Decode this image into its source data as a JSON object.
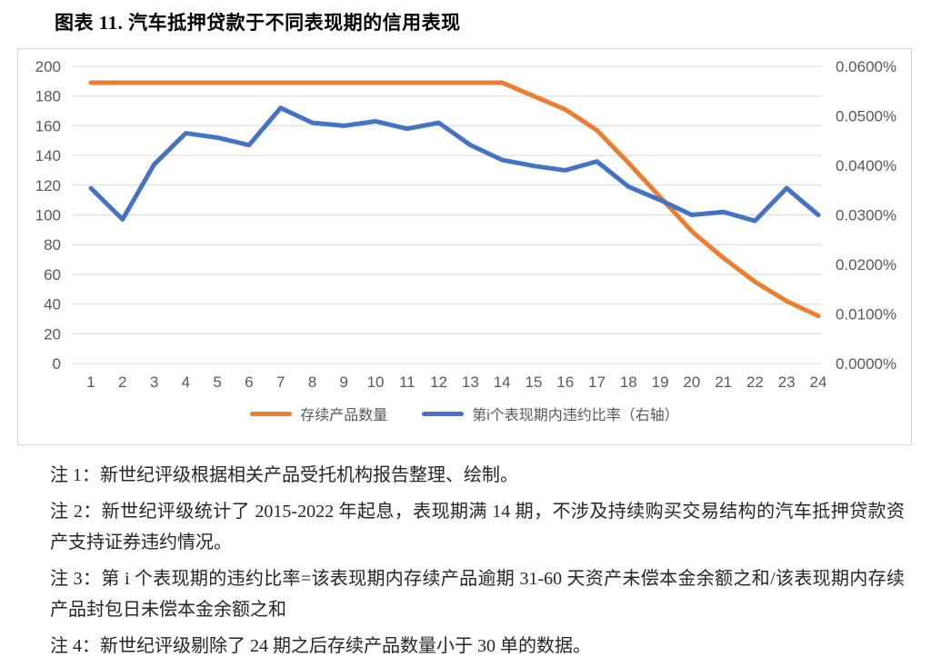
{
  "figure_title": "图表 11.  汽车抵押贷款于不同表现期的信用表现",
  "chart_data": {
    "type": "line",
    "x": [
      "1",
      "2",
      "3",
      "4",
      "5",
      "6",
      "7",
      "8",
      "9",
      "10",
      "11",
      "12",
      "13",
      "14",
      "15",
      "16",
      "17",
      "18",
      "19",
      "20",
      "21",
      "22",
      "23",
      "24"
    ],
    "series": [
      {
        "name": "存续产品数量",
        "axis": "left",
        "color": "#ED7D31",
        "values": [
          189,
          189,
          189,
          189,
          189,
          189,
          189,
          189,
          189,
          189,
          189,
          189,
          189,
          189,
          180,
          171,
          157,
          135,
          112,
          89,
          71,
          55,
          42,
          32
        ]
      },
      {
        "name": "第i个表现期内违约比率（右轴）",
        "axis": "right",
        "color": "#4472C4",
        "values_percent": [
          0.0354,
          0.0291,
          0.0402,
          0.0465,
          0.0456,
          0.0441,
          0.0516,
          0.0486,
          0.048,
          0.0489,
          0.0474,
          0.0486,
          0.0441,
          0.0411,
          0.0399,
          0.039,
          0.0408,
          0.0357,
          0.033,
          0.03,
          0.0306,
          0.0288,
          0.0354,
          0.03
        ]
      }
    ],
    "left_axis": {
      "min": 0,
      "max": 200,
      "step": 20,
      "ticks": [
        "200",
        "180",
        "160",
        "140",
        "120",
        "100",
        "80",
        "60",
        "40",
        "20",
        "0"
      ]
    },
    "right_axis": {
      "min": 0,
      "max": 0.06,
      "ticks": [
        "0.0600%",
        "0.0500%",
        "0.0400%",
        "0.0300%",
        "0.0200%",
        "0.0100%",
        "0.0000%"
      ]
    },
    "grid": true,
    "legend_position": "bottom",
    "gridline_color": "#D9D9D9",
    "axis_text_color": "#595959"
  },
  "notes": [
    "注 1：新世纪评级根据相关产品受托机构报告整理、绘制。",
    "注 2：新世纪评级统计了 2015-2022 年起息，表现期满 14 期，不涉及持续购买交易结构的汽车抵押贷款资产支持证券违约情况。",
    "注 3：第 i 个表现期的违约比率=该表现期内存续产品逾期 31-60 天资产未偿本金余额之和/该表现期内存续产品封包日未偿本金余额之和",
    "注 4：新世纪评级剔除了 24 期之后存续产品数量小于 30 单的数据。"
  ]
}
